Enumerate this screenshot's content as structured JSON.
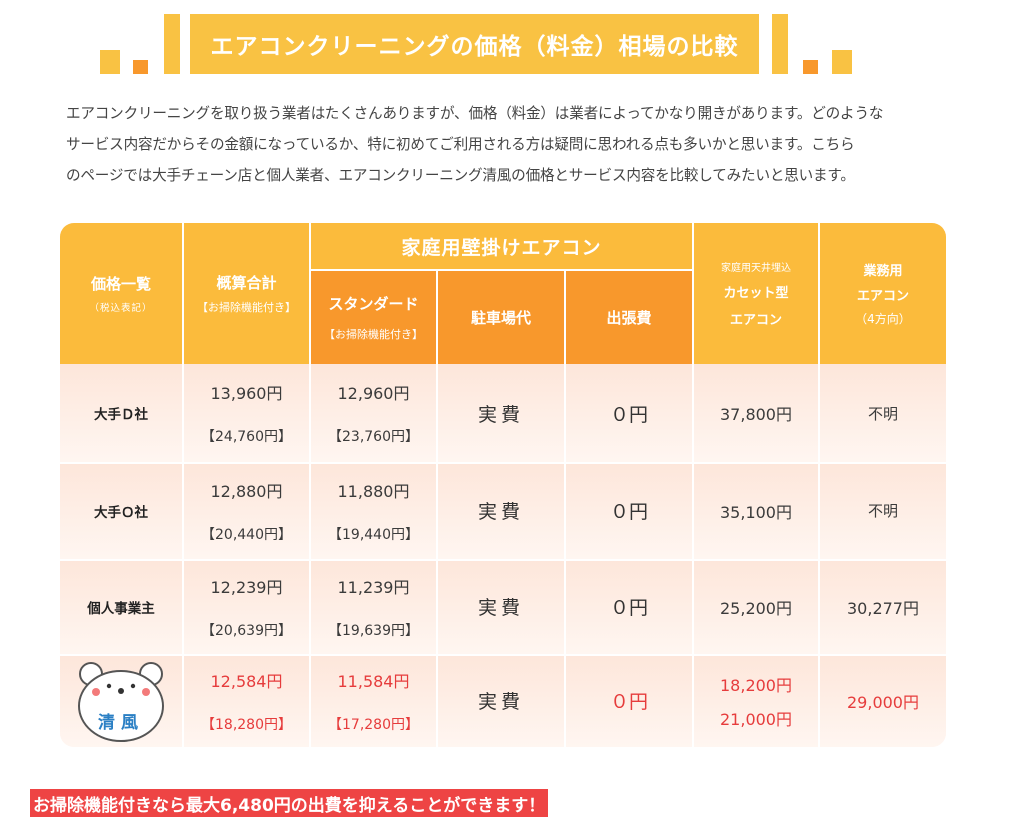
{
  "banner": {
    "title": "エアコンクリーニングの価格（料金）相場の比較",
    "color": "#f9c243",
    "decor_colors": [
      "#f9c243",
      "#f8982c"
    ]
  },
  "intro": {
    "lines": [
      "エアコンクリーニングを取り扱う業者はたくさんありますが、価格（料金）は業者によってかなり開きがあります。どのような",
      "サービス内容だからその金額になっているか、特に初めてご利用される方は疑問に思われる点も多いかと思います。こちら",
      "のページでは大手チェーン店と個人業者、エアコンクリーニング清風の価格とサービス内容を比較してみたいと思います。"
    ]
  },
  "table": {
    "header": {
      "col1_title": "価格一覧",
      "col1_note": "（税込表記）",
      "col2_title": "概算合計",
      "col2_note": "【お掃除機能付き】",
      "group_title": "家庭用壁掛けエアコン",
      "standard_title": "スタンダード",
      "standard_note": "【お掃除機能付き】",
      "parking": "駐車場代",
      "travel": "出張費",
      "ceiling_line1": "家庭用天井埋込",
      "ceiling_line2": "カセット型",
      "ceiling_line3": "エアコン",
      "business_line1": "業務用",
      "business_line2": "エアコン",
      "business_line3": "（4方向）"
    },
    "rows": [
      {
        "label": "大手Ｄ社",
        "total": "13,960円",
        "total_cleaning": "【24,760円】",
        "standard": "12,960円",
        "standard_cleaning": "【23,760円】",
        "parking": "実費",
        "travel": "０円",
        "ceiling": "37,800円",
        "business": "不明"
      },
      {
        "label": "大手Ｏ社",
        "total": "12,880円",
        "total_cleaning": "【20,440円】",
        "standard": "11,880円",
        "standard_cleaning": "【19,440円】",
        "parking": "実費",
        "travel": "０円",
        "ceiling": "35,100円",
        "business": "不明"
      },
      {
        "label": "個人事業主",
        "total": "12,239円",
        "total_cleaning": "【20,639円】",
        "standard": "11,239円",
        "standard_cleaning": "【19,639円】",
        "parking": "実費",
        "travel": "０円",
        "ceiling": "25,200円",
        "business": "30,277円"
      },
      {
        "label": "清風",
        "total": "12,584円",
        "total_cleaning": "【18,280円】",
        "standard": "11,584円",
        "standard_cleaning": "【17,280円】",
        "parking": "実費",
        "travel": "０円",
        "ceiling": "18,200円",
        "ceiling_2": "21,000円",
        "business": "29,000円"
      }
    ],
    "colors": {
      "header_yellow": "#fbbb3c",
      "header_orange": "#f8982c",
      "highlight_red": "#e63c3c"
    }
  },
  "footer": {
    "highlight": "お掃除機能付きなら最大6,480円の出費を抑えることができます！",
    "color": "#ee4444"
  }
}
